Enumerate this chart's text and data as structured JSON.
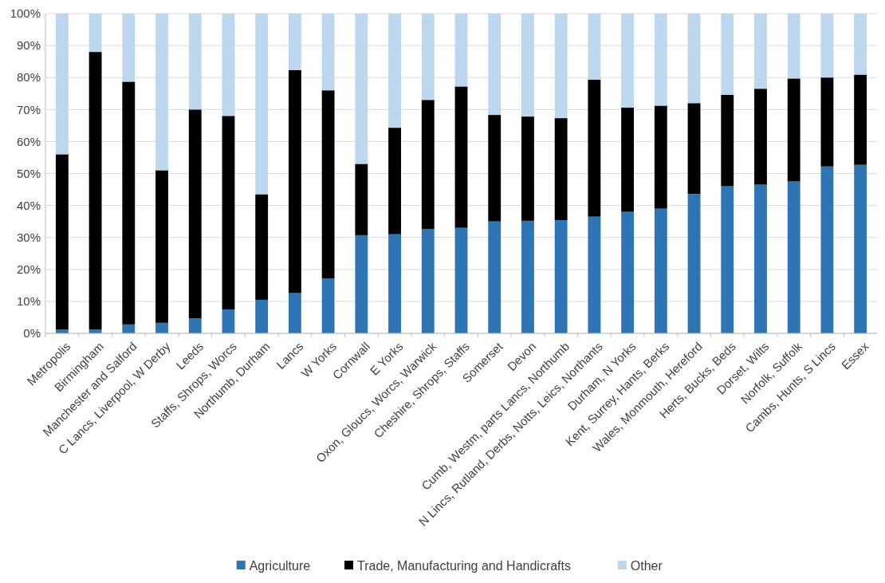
{
  "chart_data": {
    "type": "bar",
    "stacked": true,
    "categories": [
      "Metropolis",
      "Birmingham",
      "Manchester and Salford",
      "C Lancs, Liverpool, W Derby",
      "Leeds",
      "Staffs, Shrops, Worcs",
      "Northumb, Durham",
      "Lancs",
      "W Yorks",
      "Cornwall",
      "E Yorks",
      "Oxon, Gloucs, Worcs, Warwick",
      "Cheshire, Shrops, Staffs",
      "Somerset",
      "Devon",
      "Cumb, Westm, parts Lancs, Northumb",
      "N Lincs, Rutland, Derbs, Notts, Leics, Northants",
      "Durham, N Yorks",
      "Kent, Surrey, Hants, Berks",
      "Wales, Monmouth, Hereford",
      "Herts, Bucks, Beds",
      "Dorset, Wilts",
      "Norfolk, Suffolk",
      "Cambs, Hunts, S Lincs",
      "Essex"
    ],
    "series": [
      {
        "name": "Agriculture",
        "color": "#2e75b6",
        "values": [
          1.2,
          1.2,
          2.8,
          3.3,
          4.7,
          7.5,
          10.5,
          12.6,
          17.2,
          30.7,
          31,
          32.6,
          33,
          35,
          35.2,
          35.4,
          36.5,
          38,
          39,
          43.6,
          46,
          46.5,
          47.5,
          52.2,
          52.7
        ]
      },
      {
        "name": "Trade, Manufacturing and Handicrafts",
        "color": "#000000",
        "values": [
          54.8,
          86.8,
          75.9,
          47.7,
          65.3,
          60.5,
          33,
          69.7,
          58.8,
          22.3,
          33.3,
          40.4,
          44.2,
          33.3,
          32.6,
          31.9,
          42.8,
          32.6,
          32.2,
          28.4,
          28.6,
          30,
          32.2,
          27.8,
          28.2
        ]
      },
      {
        "name": "Other",
        "color": "#bdd7ee",
        "values": [
          44,
          12,
          21.3,
          49,
          30,
          32,
          56.5,
          17.7,
          24,
          47,
          35.7,
          27,
          22.8,
          31.7,
          32.2,
          32.7,
          20.7,
          29.4,
          28.8,
          28,
          25.4,
          23.5,
          20.3,
          20,
          19.1
        ]
      }
    ],
    "ylim": [
      0,
      100
    ],
    "yticks": [
      {
        "value": 0,
        "label": "0%"
      },
      {
        "value": 10,
        "label": "10%"
      },
      {
        "value": 20,
        "label": "20%"
      },
      {
        "value": 30,
        "label": "30%"
      },
      {
        "value": 40,
        "label": "40%"
      },
      {
        "value": 50,
        "label": "50%"
      },
      {
        "value": 60,
        "label": "60%"
      },
      {
        "value": 70,
        "label": "70%"
      },
      {
        "value": 80,
        "label": "80%"
      },
      {
        "value": 90,
        "label": "90%"
      },
      {
        "value": 100,
        "label": "100%"
      }
    ],
    "grid": "y",
    "legend": "bottom"
  }
}
